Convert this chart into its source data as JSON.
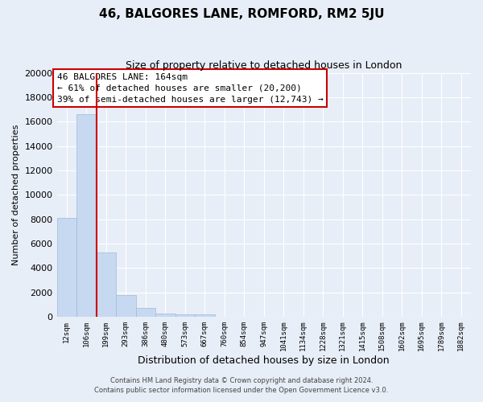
{
  "title": "46, BALGORES LANE, ROMFORD, RM2 5JU",
  "subtitle": "Size of property relative to detached houses in London",
  "xlabel": "Distribution of detached houses by size in London",
  "ylabel": "Number of detached properties",
  "bar_labels": [
    "12sqm",
    "106sqm",
    "199sqm",
    "293sqm",
    "386sqm",
    "480sqm",
    "573sqm",
    "667sqm",
    "760sqm",
    "854sqm",
    "947sqm",
    "1041sqm",
    "1134sqm",
    "1228sqm",
    "1321sqm",
    "1415sqm",
    "1508sqm",
    "1602sqm",
    "1695sqm",
    "1789sqm",
    "1882sqm"
  ],
  "bar_values": [
    8100,
    16600,
    5300,
    1750,
    750,
    270,
    200,
    180,
    0,
    0,
    0,
    0,
    0,
    0,
    0,
    0,
    0,
    0,
    0,
    0,
    0
  ],
  "bar_color": "#c6d9f0",
  "bar_edge_color": "#a0b8d8",
  "vline_color": "#cc0000",
  "vline_x": 1.5,
  "ylim": [
    0,
    20000
  ],
  "yticks": [
    0,
    2000,
    4000,
    6000,
    8000,
    10000,
    12000,
    14000,
    16000,
    18000,
    20000
  ],
  "annotation_title": "46 BALGORES LANE: 164sqm",
  "annotation_line1": "← 61% of detached houses are smaller (20,200)",
  "annotation_line2": "39% of semi-detached houses are larger (12,743) →",
  "annotation_box_color": "#ffffff",
  "annotation_box_edge": "#cc0000",
  "footer_line1": "Contains HM Land Registry data © Crown copyright and database right 2024.",
  "footer_line2": "Contains public sector information licensed under the Open Government Licence v3.0.",
  "bg_color": "#e8eef7",
  "title_fontsize": 11,
  "subtitle_fontsize": 9
}
